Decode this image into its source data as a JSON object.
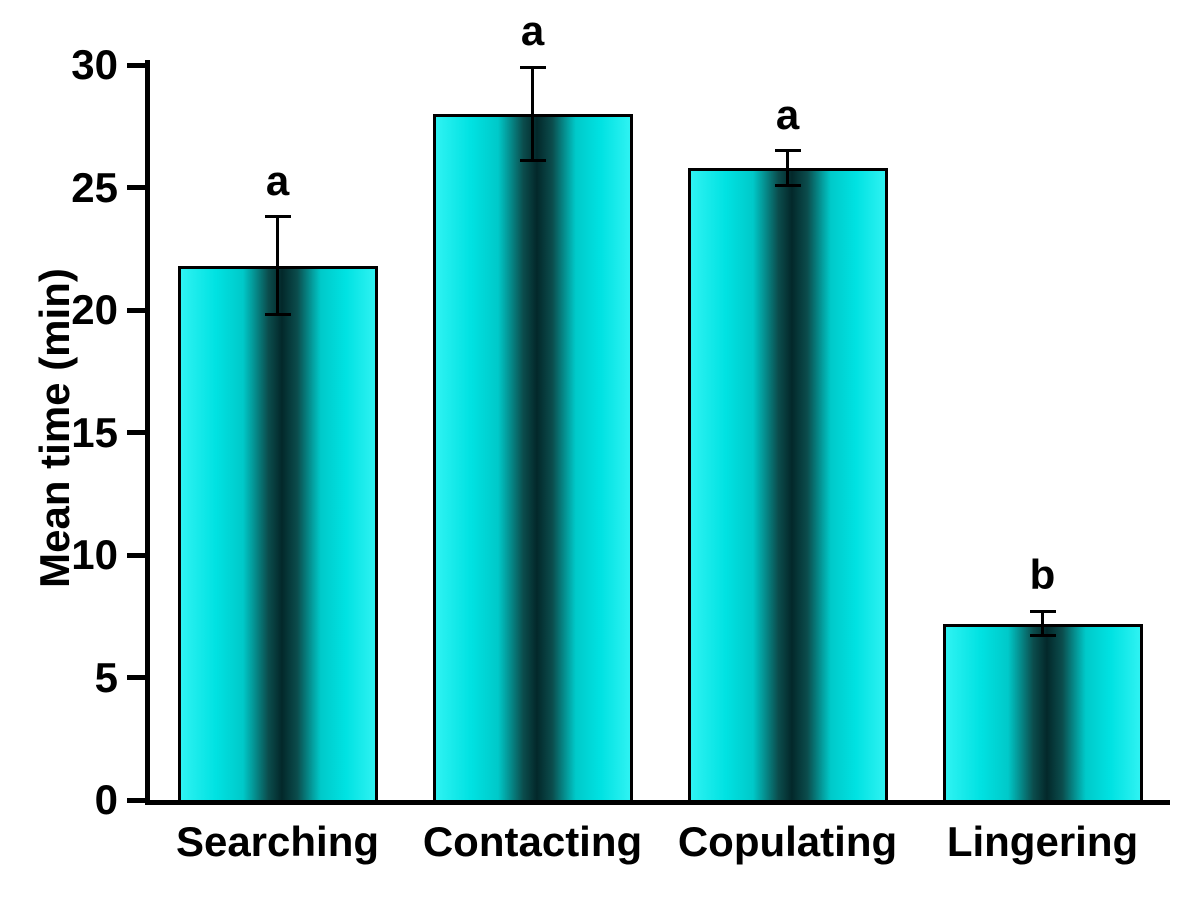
{
  "chart_data": {
    "type": "bar",
    "title": "",
    "xlabel": "",
    "ylabel": "Mean time (min)",
    "ylim": [
      0,
      30
    ],
    "yticks": [
      0,
      5,
      10,
      15,
      20,
      25,
      30
    ],
    "categories": [
      "Searching",
      "Contacting",
      "Copulating",
      "Lingering"
    ],
    "values": [
      21.8,
      28.0,
      25.8,
      7.2
    ],
    "errors": [
      2.0,
      1.9,
      0.7,
      0.5
    ],
    "sig_letters": [
      "a",
      "a",
      "a",
      "b"
    ],
    "bar_fill_color": "#00e2e2",
    "bar_shade_color": "#03282a",
    "bar_border_color": "#000000",
    "axis_color": "#000000",
    "grid": false,
    "legend": false
  }
}
